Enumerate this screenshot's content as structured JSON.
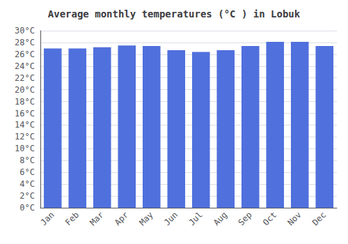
{
  "chart_data": {
    "type": "bar",
    "title": "Average monthly temperatures (°C ) in Lobuk",
    "categories": [
      "Jan",
      "Feb",
      "Mar",
      "Apr",
      "May",
      "Jun",
      "Jul",
      "Aug",
      "Sep",
      "Oct",
      "Nov",
      "Dec"
    ],
    "values": [
      27.0,
      27.0,
      27.2,
      27.5,
      27.4,
      26.7,
      26.4,
      26.7,
      27.4,
      28.1,
      28.1,
      27.4
    ],
    "ylim": [
      0,
      30
    ],
    "yticks": [
      {
        "value": 0,
        "label": "0°C"
      },
      {
        "value": 2,
        "label": "2°C"
      },
      {
        "value": 4,
        "label": "4°C"
      },
      {
        "value": 6,
        "label": "6°C"
      },
      {
        "value": 8,
        "label": "8°C"
      },
      {
        "value": 10,
        "label": "10°C"
      },
      {
        "value": 12,
        "label": "12°C"
      },
      {
        "value": 14,
        "label": "14°C"
      },
      {
        "value": 16,
        "label": "16°C"
      },
      {
        "value": 18,
        "label": "18°C"
      },
      {
        "value": 20,
        "label": "20°C"
      },
      {
        "value": 22,
        "label": "22°C"
      },
      {
        "value": 24,
        "label": "24°C"
      },
      {
        "value": 26,
        "label": "26°C"
      },
      {
        "value": 28,
        "label": "28°C"
      },
      {
        "value": 30,
        "label": "30°C"
      }
    ],
    "grid": true
  }
}
